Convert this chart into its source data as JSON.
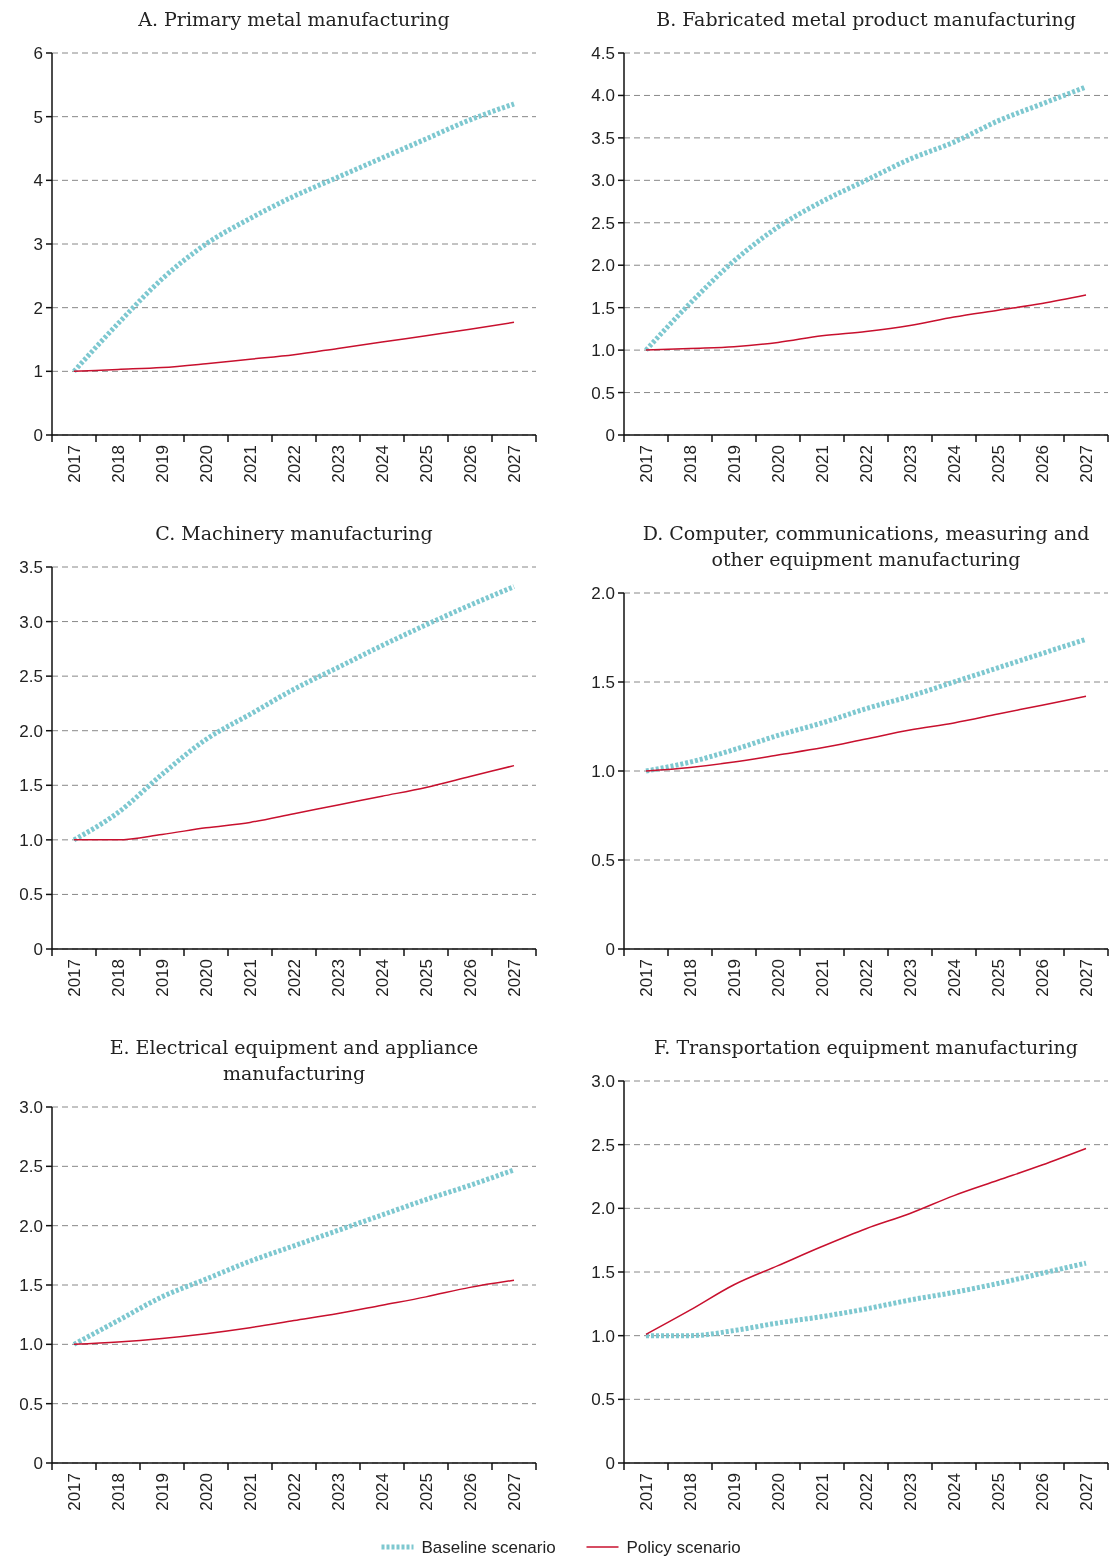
{
  "chart_data": [
    {
      "type": "line",
      "title": "A. Primary metal manufacturing",
      "categories": [
        "2017",
        "2018",
        "2019",
        "2020",
        "2021",
        "2022",
        "2023",
        "2024",
        "2025",
        "2026",
        "2027"
      ],
      "series": [
        {
          "color": "#7ec8d0",
          "line_style": "dotted",
          "values": [
            1,
            1.75,
            2.45,
            3.0,
            3.4,
            3.75,
            4.05,
            4.35,
            4.65,
            4.95,
            5.2
          ]
        },
        {
          "color": "#c8102e",
          "line_style": "solid",
          "values": [
            1,
            1.03,
            1.06,
            1.12,
            1.19,
            1.26,
            1.36,
            1.46,
            1.56,
            1.66,
            1.77
          ]
        }
      ],
      "ylim": [
        0,
        6
      ],
      "yticks": [
        0,
        1,
        2,
        3,
        4,
        5,
        6
      ],
      "grid": "y"
    },
    {
      "type": "line",
      "title": "B. Fabricated metal product manufacturing",
      "categories": [
        "2017",
        "2018",
        "2019",
        "2020",
        "2021",
        "2022",
        "2023",
        "2024",
        "2025",
        "2026",
        "2027"
      ],
      "series": [
        {
          "color": "#7ec8d0",
          "line_style": "dotted",
          "values": [
            1,
            1.55,
            2.05,
            2.45,
            2.75,
            3.0,
            3.25,
            3.45,
            3.7,
            3.9,
            4.1
          ]
        },
        {
          "color": "#c8102e",
          "line_style": "solid",
          "values": [
            1,
            1.02,
            1.04,
            1.09,
            1.17,
            1.22,
            1.29,
            1.39,
            1.47,
            1.55,
            1.65
          ]
        }
      ],
      "ylim": [
        0,
        4.5
      ],
      "yticks": [
        0,
        0.5,
        {
          "value": 1,
          "label": "1.0"
        },
        1.5,
        {
          "value": 2,
          "label": "2.0"
        },
        2.5,
        {
          "value": 3,
          "label": "3.0"
        },
        3.5,
        {
          "value": 4,
          "label": "4.0"
        },
        4.5
      ],
      "grid": "y"
    },
    {
      "type": "line",
      "title": "C. Machinery manufacturing",
      "categories": [
        "2017",
        "2018",
        "2019",
        "2020",
        "2021",
        "2022",
        "2023",
        "2024",
        "2025",
        "2026",
        "2027"
      ],
      "series": [
        {
          "color": "#7ec8d0",
          "line_style": "dotted",
          "values": [
            1,
            1.25,
            1.6,
            1.92,
            2.15,
            2.38,
            2.58,
            2.78,
            2.97,
            3.15,
            3.32
          ]
        },
        {
          "color": "#c8102e",
          "line_style": "solid",
          "values": [
            1,
            1.0,
            1.05,
            1.11,
            1.16,
            1.24,
            1.32,
            1.4,
            1.48,
            1.58,
            1.68
          ]
        }
      ],
      "ylim": [
        0,
        3.5
      ],
      "yticks": [
        0,
        0.5,
        {
          "value": 1,
          "label": "1.0"
        },
        1.5,
        {
          "value": 2,
          "label": "2.0"
        },
        2.5,
        {
          "value": 3,
          "label": "3.0"
        },
        3.5
      ],
      "grid": "y"
    },
    {
      "type": "line",
      "title": "D. Computer, communications, measuring and other equipment manufacturing",
      "categories": [
        "2017",
        "2018",
        "2019",
        "2020",
        "2021",
        "2022",
        "2023",
        "2024",
        "2025",
        "2026",
        "2027"
      ],
      "series": [
        {
          "color": "#7ec8d0",
          "line_style": "dotted",
          "values": [
            1,
            1.05,
            1.12,
            1.2,
            1.27,
            1.35,
            1.42,
            1.5,
            1.58,
            1.66,
            1.74
          ]
        },
        {
          "color": "#c8102e",
          "line_style": "solid",
          "values": [
            1,
            1.02,
            1.05,
            1.09,
            1.13,
            1.18,
            1.23,
            1.27,
            1.32,
            1.37,
            1.42
          ]
        }
      ],
      "ylim": [
        0,
        2
      ],
      "yticks": [
        0,
        0.5,
        {
          "value": 1,
          "label": "1.0"
        },
        1.5,
        {
          "value": 2,
          "label": "2.0"
        }
      ],
      "grid": "y"
    },
    {
      "type": "line",
      "title": "E. Electrical equipment and appliance manufacturing",
      "categories": [
        "2017",
        "2018",
        "2019",
        "2020",
        "2021",
        "2022",
        "2023",
        "2024",
        "2025",
        "2026",
        "2027"
      ],
      "series": [
        {
          "color": "#7ec8d0",
          "line_style": "dotted",
          "values": [
            1,
            1.2,
            1.4,
            1.55,
            1.7,
            1.83,
            1.96,
            2.09,
            2.22,
            2.34,
            2.47
          ]
        },
        {
          "color": "#c8102e",
          "line_style": "solid",
          "values": [
            1,
            1.02,
            1.05,
            1.09,
            1.14,
            1.2,
            1.26,
            1.33,
            1.4,
            1.48,
            1.54
          ]
        }
      ],
      "ylim": [
        0,
        3
      ],
      "yticks": [
        0,
        0.5,
        {
          "value": 1,
          "label": "1.0"
        },
        1.5,
        {
          "value": 2,
          "label": "2.0"
        },
        2.5,
        {
          "value": 3,
          "label": "3.0"
        }
      ],
      "grid": "y"
    },
    {
      "type": "line",
      "title": "F. Transportation equipment manufacturing",
      "categories": [
        "2017",
        "2018",
        "2019",
        "2020",
        "2021",
        "2022",
        "2023",
        "2024",
        "2025",
        "2026",
        "2027"
      ],
      "series": [
        {
          "name": "Baseline scenario",
          "color": "#7ec8d0",
          "line_style": "dotted",
          "values": [
            1,
            1.0,
            1.04,
            1.1,
            1.15,
            1.21,
            1.28,
            1.34,
            1.41,
            1.49,
            1.57
          ]
        },
        {
          "name": "Policy scenario",
          "color": "#c8102e",
          "line_style": "solid",
          "values": [
            1.01,
            1.2,
            1.4,
            1.55,
            1.7,
            1.84,
            1.96,
            2.1,
            2.22,
            2.34,
            2.47
          ]
        }
      ],
      "ylim": [
        0,
        3
      ],
      "yticks": [
        0,
        0.5,
        {
          "value": 1,
          "label": "1.0"
        },
        1.5,
        {
          "value": 2,
          "label": "2.0"
        },
        2.5,
        {
          "value": 3,
          "label": "3.0"
        }
      ],
      "grid": "y",
      "legend": "bottom"
    }
  ]
}
